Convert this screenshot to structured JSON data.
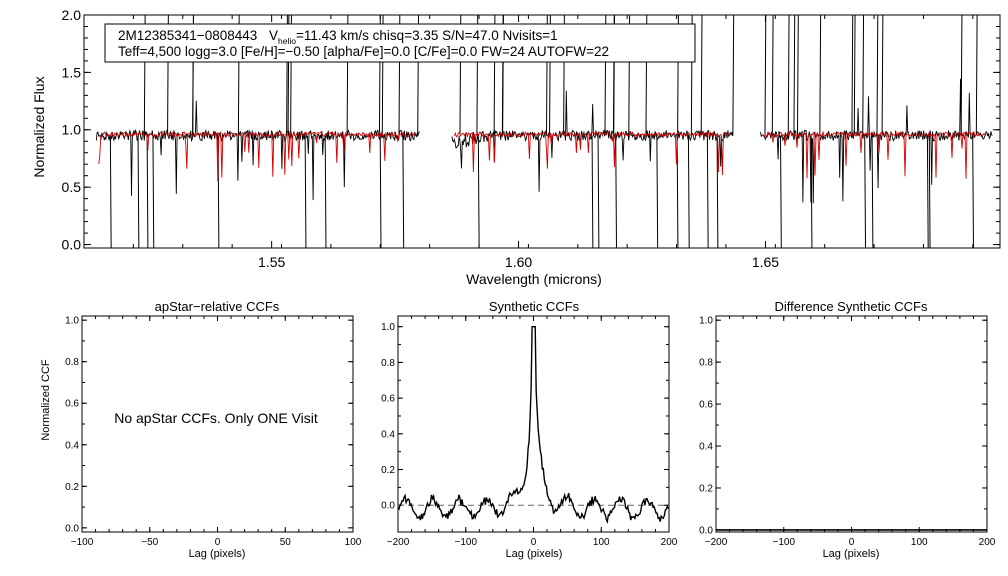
{
  "colors": {
    "observed": "#000000",
    "model": "#d40000",
    "axis": "#000000",
    "zero_line": "#666666"
  },
  "chart_data": [
    {
      "id": "spectrum",
      "type": "line",
      "xlabel": "Wavelength (microns)",
      "ylabel": "Normalized Flux",
      "xlim": [
        1.512,
        1.6975
      ],
      "ylim": [
        -0.03,
        2.0
      ],
      "xticks": [
        {
          "v": 1.55,
          "label": "1.55"
        },
        {
          "v": 1.6,
          "label": "1.60"
        },
        {
          "v": 1.65,
          "label": "1.65"
        }
      ],
      "yticks": [
        {
          "v": 0.0,
          "label": "0.0"
        },
        {
          "v": 0.5,
          "label": "0.5"
        },
        {
          "v": 1.0,
          "label": "1.0"
        },
        {
          "v": 1.5,
          "label": "1.5"
        },
        {
          "v": 2.0,
          "label": "2.0"
        }
      ],
      "segments": [
        [
          1.5145,
          1.58
        ],
        [
          1.5865,
          1.6435
        ],
        [
          1.649,
          1.696
        ]
      ],
      "model_segments": [
        [
          1.515,
          1.579
        ],
        [
          1.587,
          1.6425
        ],
        [
          1.6495,
          1.6945
        ]
      ],
      "continuum": 0.95,
      "model_continuum": 0.96,
      "series": [
        {
          "name": "observed spectrum"
        },
        {
          "name": "model spectrum"
        }
      ],
      "annotation": {
        "line1_id": "2M12385341−0808443",
        "line1_v": "V",
        "line1_vsub": "helio",
        "line1_rest": "=11.43 km/s  chisq=3.35  S/N=47.0  Nvisits=1",
        "line2": "Teff=4,500 logg=3.0 [Fe/H]=−0.50 [alpha/Fe]=0.0 [C/Fe]=0.0 FW=24 AUTOFW=22"
      }
    },
    {
      "id": "apstar",
      "type": "line",
      "title": "apStar−relative CCFs",
      "xlabel": "Lag (pixels)",
      "ylabel": "Normalized CCF",
      "xlim": [
        -100,
        100
      ],
      "ylim": [
        -0.02,
        1.02
      ],
      "xticks": [
        {
          "v": -100,
          "label": "−100"
        },
        {
          "v": -50,
          "label": "−50"
        },
        {
          "v": 0,
          "label": "0"
        },
        {
          "v": 50,
          "label": "50"
        },
        {
          "v": 100,
          "label": "100"
        }
      ],
      "yticks": [
        {
          "v": 0,
          "label": "0.0"
        },
        {
          "v": 0.2,
          "label": "0.2"
        },
        {
          "v": 0.4,
          "label": "0.4"
        },
        {
          "v": 0.6,
          "label": "0.6"
        },
        {
          "v": 0.8,
          "label": "0.8"
        },
        {
          "v": 1.0,
          "label": "1.0"
        }
      ],
      "message": "No apStar CCFs.  Only ONE Visit"
    },
    {
      "id": "synthetic",
      "type": "line",
      "title": "Synthetic CCFs",
      "xlabel": "Lag (pixels)",
      "xlim": [
        -200,
        200
      ],
      "ylim": [
        -0.15,
        1.06
      ],
      "xticks": [
        {
          "v": -200,
          "label": "−200"
        },
        {
          "v": -100,
          "label": "−100"
        },
        {
          "v": 0,
          "label": "0"
        },
        {
          "v": 100,
          "label": "100"
        },
        {
          "v": 200,
          "label": "200"
        }
      ],
      "yticks": [
        {
          "v": 0,
          "label": "0.0"
        },
        {
          "v": 0.2,
          "label": "0.2"
        },
        {
          "v": 0.4,
          "label": "0.4"
        },
        {
          "v": 0.6,
          "label": "0.6"
        },
        {
          "v": 0.8,
          "label": "0.8"
        },
        {
          "v": 1.0,
          "label": "1.0"
        }
      ],
      "zero_line": 0.0,
      "peak_lag": 0,
      "peak_value": 1.0
    },
    {
      "id": "difference",
      "type": "line",
      "title": "Difference Synthetic CCFs",
      "xlabel": "Lag (pixels)",
      "xlim": [
        -200,
        200
      ],
      "ylim": [
        -0.01,
        1.02
      ],
      "xticks": [
        {
          "v": -200,
          "label": "−200"
        },
        {
          "v": -100,
          "label": "−100"
        },
        {
          "v": 0,
          "label": "0"
        },
        {
          "v": 100,
          "label": "100"
        },
        {
          "v": 200,
          "label": "200"
        }
      ],
      "yticks": [
        {
          "v": 0,
          "label": "0.0"
        },
        {
          "v": 0.2,
          "label": "0.2"
        },
        {
          "v": 0.4,
          "label": "0.4"
        },
        {
          "v": 0.6,
          "label": "0.6"
        },
        {
          "v": 0.8,
          "label": "0.8"
        },
        {
          "v": 1.0,
          "label": "1.0"
        }
      ],
      "constant_value": 0.0
    }
  ]
}
